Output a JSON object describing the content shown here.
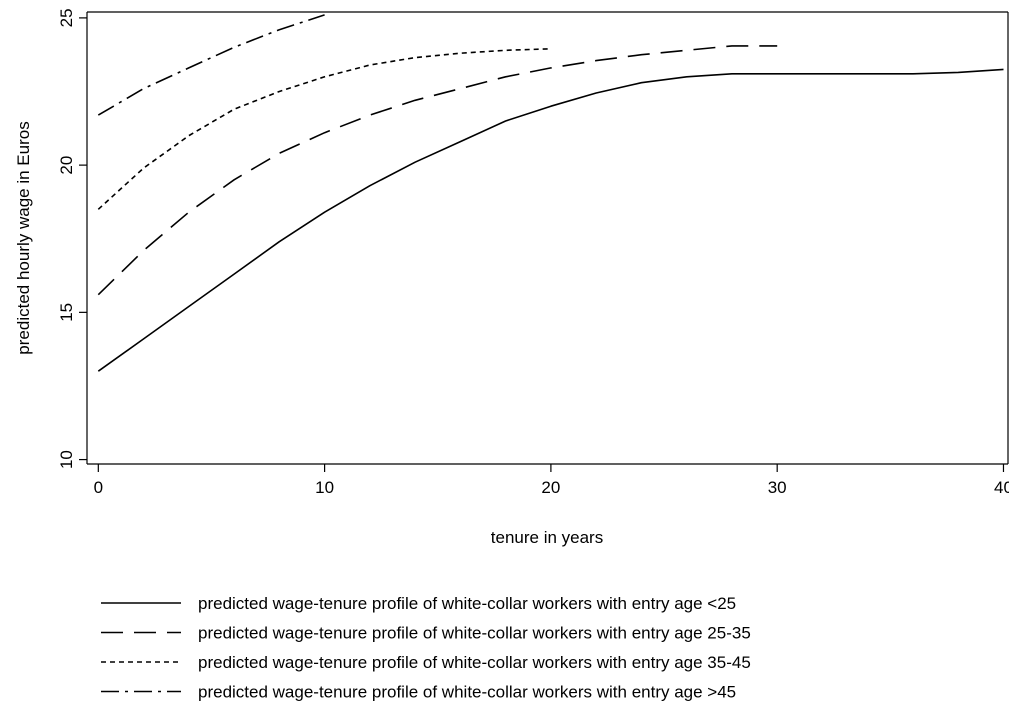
{
  "chart_data": {
    "type": "line",
    "xlabel": "tenure in years",
    "ylabel": "predicted hourly wage in Euros",
    "xlim": [
      -0.5,
      40.2
    ],
    "ylim": [
      9.85,
      25.2
    ],
    "x_ticks": [
      0,
      10,
      20,
      30,
      40
    ],
    "y_ticks": [
      10,
      15,
      20,
      25
    ],
    "grid": false,
    "legend_position": "bottom",
    "series": [
      {
        "name": "predicted wage-tenure profile of white-collar workers with entry age <25",
        "dash": "solid",
        "x": [
          0,
          2,
          4,
          6,
          8,
          10,
          12,
          14,
          16,
          18,
          20,
          22,
          24,
          26,
          28,
          30,
          32,
          34,
          36,
          38,
          40
        ],
        "y": [
          13.0,
          14.1,
          15.2,
          16.3,
          17.4,
          18.4,
          19.3,
          20.1,
          20.8,
          21.5,
          22.0,
          22.45,
          22.8,
          23.0,
          23.1,
          23.1,
          23.1,
          23.1,
          23.1,
          23.15,
          23.25
        ]
      },
      {
        "name": "predicted wage-tenure profile of white-collar workers with entry age 25-35",
        "dash": "long-dash",
        "x": [
          0,
          2,
          4,
          6,
          8,
          10,
          12,
          14,
          16,
          18,
          20,
          22,
          24,
          26,
          28,
          30
        ],
        "y": [
          15.6,
          17.1,
          18.4,
          19.5,
          20.4,
          21.1,
          21.7,
          22.2,
          22.6,
          23.0,
          23.3,
          23.55,
          23.75,
          23.9,
          24.05,
          24.05
        ]
      },
      {
        "name": "predicted wage-tenure profile of white-collar workers with entry age 35-45",
        "dash": "short-dash",
        "x": [
          0,
          2,
          4,
          6,
          8,
          10,
          12,
          14,
          16,
          18,
          20
        ],
        "y": [
          18.5,
          19.9,
          21.0,
          21.9,
          22.5,
          23.0,
          23.4,
          23.65,
          23.8,
          23.9,
          23.95
        ]
      },
      {
        "name": "predicted wage-tenure profile of white-collar workers with entry age >45",
        "dash": "dash-dot",
        "x": [
          0,
          2,
          4,
          6,
          8,
          10
        ],
        "y": [
          21.7,
          22.6,
          23.3,
          24.0,
          24.6,
          25.1
        ]
      }
    ]
  }
}
